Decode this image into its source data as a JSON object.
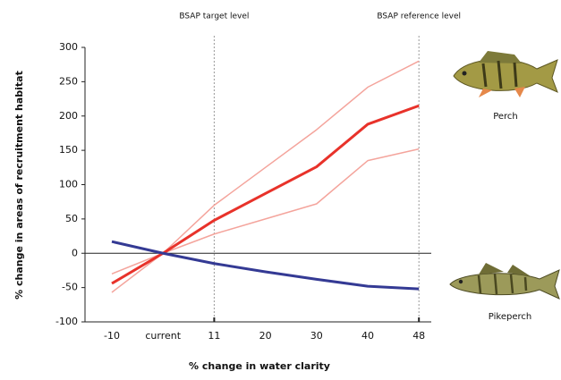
{
  "chart_data": {
    "type": "line",
    "y_label": "% change in areas of recruitment habitat",
    "x_label": "% change in water clarity",
    "categories": [
      "-10",
      "current",
      "11",
      "20",
      "30",
      "40",
      "48"
    ],
    "ylim": [
      -100,
      300
    ],
    "yticks": [
      -100,
      -50,
      0,
      50,
      100,
      150,
      200,
      250,
      300
    ],
    "series": [
      {
        "name": "Perch",
        "color": "#e8322a",
        "values": [
          -44,
          0,
          48,
          87,
          126,
          188,
          215
        ]
      },
      {
        "name": "Pikeperch",
        "color": "#343a94",
        "values": [
          17,
          0,
          -15,
          -27,
          -38,
          -48,
          -52
        ]
      }
    ],
    "perch_interval": {
      "color": "#f4a49c",
      "upper": [
        -30,
        0,
        70,
        125,
        180,
        242,
        280
      ],
      "lower": [
        -57,
        0,
        28,
        50,
        72,
        135,
        152
      ]
    },
    "annotations": [
      {
        "text": "BSAP target level",
        "at": "11"
      },
      {
        "text": "BSAP reference level",
        "at": "48"
      }
    ]
  }
}
